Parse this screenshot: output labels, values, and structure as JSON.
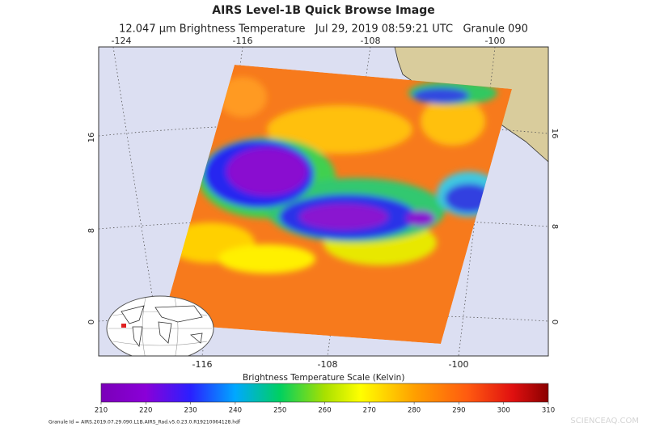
{
  "title": "AIRS Level-1B Quick Browse Image",
  "subtitle": "12.047 μm Brightness Temperature   Jul 29, 2019 08:59:21 UTC   Granule 090",
  "map": {
    "lon_labels_top": [
      -124,
      -116,
      -108,
      -100
    ],
    "lon_labels_bottom": [
      -116,
      -108,
      -100
    ],
    "lat_labels_left": [
      16,
      8,
      0
    ],
    "lat_labels_right": [
      16,
      8,
      0
    ]
  },
  "colorbar": {
    "label": "Brightness Temperature Scale (Kelvin)",
    "lim": [
      210,
      310
    ],
    "ticks": [
      210,
      220,
      230,
      240,
      250,
      260,
      270,
      280,
      290,
      300,
      310
    ]
  },
  "granule_id": "Granule Id = AIRS.2019.07.29.090.L1B.AIRS_Rad.v5.0.23.0.R19210064128.hdf",
  "watermark": "SCIENCEAQ.COM"
}
